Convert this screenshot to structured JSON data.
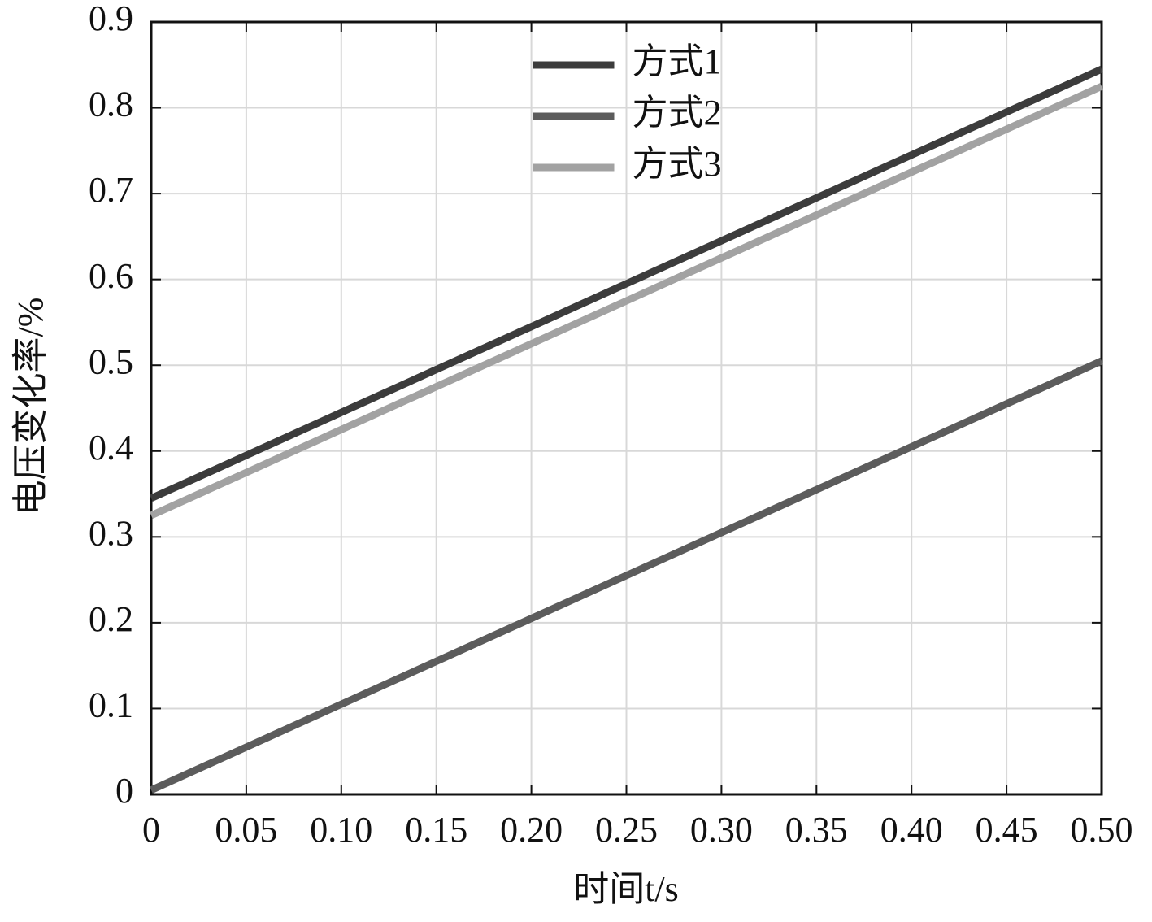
{
  "chart_data": {
    "type": "line",
    "x_label": "时间t/s",
    "y_label": "电压变化率/%",
    "x": [
      0,
      0.05,
      0.1,
      0.15,
      0.2,
      0.25,
      0.3,
      0.35,
      0.4,
      0.45,
      0.5
    ],
    "series": [
      {
        "name": "方式1",
        "color": "#3c3c3c",
        "values": [
          0.345,
          0.395,
          0.445,
          0.495,
          0.545,
          0.595,
          0.645,
          0.695,
          0.745,
          0.795,
          0.845
        ]
      },
      {
        "name": "方式2",
        "color": "#5c5c5c",
        "values": [
          0.005,
          0.055,
          0.105,
          0.155,
          0.205,
          0.255,
          0.305,
          0.355,
          0.405,
          0.455,
          0.505
        ]
      },
      {
        "name": "方式3",
        "color": "#a2a2a2",
        "values": [
          0.325,
          0.375,
          0.425,
          0.475,
          0.525,
          0.575,
          0.625,
          0.675,
          0.725,
          0.775,
          0.825
        ]
      }
    ],
    "xlim": [
      0,
      0.5
    ],
    "ylim": [
      0,
      0.9
    ],
    "xticks": [
      0,
      0.05,
      {
        "value": 0.1,
        "label": "0.10"
      },
      0.15,
      {
        "value": 0.2,
        "label": "0.20"
      },
      0.25,
      {
        "value": 0.3,
        "label": "0.30"
      },
      0.35,
      {
        "value": 0.4,
        "label": "0.40"
      },
      0.45,
      {
        "value": 0.5,
        "label": "0.50"
      }
    ],
    "yticks": [
      0,
      0.1,
      0.2,
      0.3,
      0.4,
      0.5,
      0.6,
      0.7,
      0.8,
      0.9
    ],
    "grid": true,
    "legend": "upper center"
  }
}
